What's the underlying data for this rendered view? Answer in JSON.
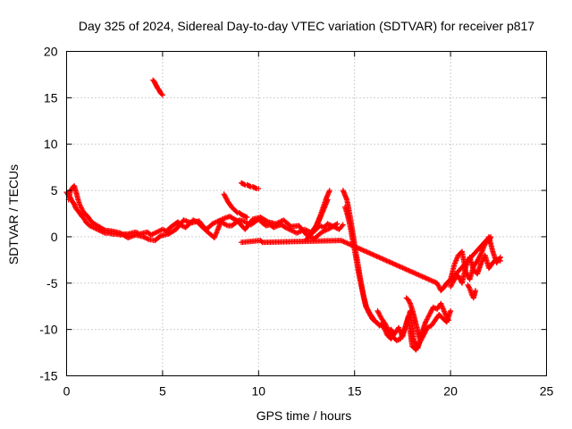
{
  "chart_data": {
    "type": "scatter",
    "title": "Day 325 of 2024, Sidereal Day-to-day VTEC variation (SDTVAR) for receiver p817",
    "xlabel": "GPS time / hours",
    "ylabel": "SDTVAR / TECUs",
    "xlim": [
      0,
      25
    ],
    "ylim": [
      -15,
      20
    ],
    "xticks": [
      0,
      5,
      10,
      15,
      20,
      25
    ],
    "yticks": [
      -15,
      -10,
      -5,
      0,
      5,
      10,
      15,
      20
    ],
    "grid": true,
    "marker": "+",
    "color": "#ff0000",
    "series": [
      {
        "name": "main",
        "x": [
          0.0,
          0.1,
          0.2,
          0.3,
          0.4,
          0.5,
          0.6,
          0.7,
          0.8,
          0.9,
          1.0,
          1.2,
          1.4,
          1.6,
          1.8,
          2.0,
          2.2,
          2.4,
          2.6,
          2.8,
          3.0,
          3.2,
          3.4,
          3.6,
          3.8,
          4.0,
          4.2,
          4.4,
          4.6,
          4.8,
          5.0,
          5.2,
          5.4,
          5.6,
          5.8,
          6.0,
          6.2,
          6.4,
          6.6,
          6.8,
          7.0,
          7.2,
          7.4,
          7.6,
          7.8,
          8.0,
          8.2,
          8.4,
          8.6,
          8.8,
          9.0,
          9.2,
          9.4,
          9.6,
          9.8,
          10.0,
          10.2,
          10.4,
          10.6,
          10.8,
          11.0,
          11.2,
          11.4,
          11.6,
          11.8,
          12.0,
          12.2,
          12.4,
          12.6,
          12.8,
          13.0,
          13.2,
          13.4,
          13.6,
          13.8,
          14.0,
          14.2,
          14.4
        ],
        "y": [
          4.8,
          4.5,
          4.2,
          3.8,
          3.5,
          3.0,
          2.8,
          2.5,
          2.2,
          2.0,
          1.6,
          1.2,
          1.0,
          0.8,
          0.6,
          0.4,
          0.4,
          0.3,
          0.3,
          0.2,
          0.3,
          0.3,
          0.4,
          0.5,
          0.3,
          0.4,
          0.5,
          0.2,
          0.4,
          0.6,
          0.8,
          0.6,
          1.0,
          1.3,
          1.6,
          1.2,
          1.0,
          1.4,
          1.8,
          1.6,
          1.2,
          0.8,
          1.0,
          1.4,
          1.6,
          1.8,
          1.4,
          1.2,
          1.2,
          1.5,
          1.8,
          1.7,
          1.5,
          1.3,
          1.6,
          1.9,
          1.5,
          1.2,
          1.3,
          1.0,
          1.2,
          1.3,
          1.0,
          0.8,
          0.6,
          0.4,
          0.6,
          0.8,
          0.6,
          0.4,
          0.8,
          1.2,
          1.0,
          1.4,
          1.2,
          1.0,
          0.8,
          1.3
        ]
      },
      {
        "name": "main-b",
        "x": [
          0.1,
          0.2,
          0.3,
          0.4,
          0.5,
          0.6,
          0.7,
          0.9,
          1.1,
          1.3,
          1.6,
          2.0,
          2.4,
          2.8,
          3.2,
          3.6,
          4.0,
          4.3,
          4.6,
          4.9,
          5.3,
          5.7,
          6.1,
          6.5,
          6.9,
          7.3,
          7.7,
          8.1,
          8.5,
          8.9,
          9.3,
          9.7,
          10.1,
          10.5,
          10.9,
          11.3,
          11.7,
          12.1,
          12.5,
          12.9,
          13.3,
          13.7,
          14.1
        ],
        "y": [
          4.0,
          4.9,
          5.3,
          5.5,
          4.8,
          4.0,
          3.4,
          2.6,
          2.2,
          1.6,
          1.2,
          0.7,
          0.6,
          0.4,
          -0.1,
          0.2,
          0.0,
          -0.3,
          -0.4,
          0.1,
          0.3,
          0.8,
          1.8,
          1.5,
          1.7,
          0.6,
          -0.1,
          1.9,
          2.2,
          1.7,
          0.8,
          1.9,
          2.1,
          1.6,
          1.4,
          1.8,
          1.1,
          1.2,
          0.2,
          -0.2,
          0.5,
          0.9,
          1.4
        ]
      },
      {
        "name": "steep-rise-1",
        "x": [
          12.5,
          12.6,
          12.7,
          12.8,
          12.9,
          13.0,
          13.1,
          13.2,
          13.3,
          13.4,
          13.5,
          13.6,
          13.7
        ],
        "y": [
          -0.3,
          0.0,
          0.2,
          0.6,
          0.9,
          1.2,
          1.7,
          2.2,
          2.8,
          3.4,
          4.0,
          4.5,
          5.0
        ]
      },
      {
        "name": "steep-rise-2",
        "x": [
          13.0,
          13.1,
          13.2,
          13.3,
          13.4,
          13.5,
          13.6
        ],
        "y": [
          1.1,
          1.5,
          2.0,
          2.5,
          3.0,
          3.5,
          4.0
        ]
      },
      {
        "name": "outlier-high",
        "x": [
          4.5,
          4.55,
          4.6,
          4.65,
          4.7,
          4.75,
          4.8,
          4.85,
          4.9,
          4.95,
          5.0
        ],
        "y": [
          16.9,
          16.8,
          16.6,
          16.4,
          16.2,
          16.0,
          15.9,
          15.7,
          15.5,
          15.4,
          15.3
        ]
      },
      {
        "name": "outlier-mid-a",
        "x": [
          9.1,
          9.2,
          9.3,
          9.4,
          9.5,
          9.6,
          9.7,
          9.8,
          9.9,
          10.0
        ],
        "y": [
          5.8,
          5.7,
          5.6,
          5.6,
          5.5,
          5.4,
          5.4,
          5.3,
          5.2,
          5.2
        ]
      },
      {
        "name": "outlier-mid-b",
        "x": [
          8.2,
          8.3,
          8.4,
          8.5,
          8.6,
          8.7,
          8.8,
          8.9,
          9.0,
          9.1,
          9.2,
          9.3,
          9.4
        ],
        "y": [
          4.6,
          4.2,
          3.8,
          3.5,
          3.2,
          3.0,
          2.8,
          2.6,
          2.6,
          2.4,
          2.3,
          2.2,
          2.1
        ]
      },
      {
        "name": "descent",
        "x": [
          14.4,
          14.5,
          14.6,
          14.7,
          14.8,
          14.9,
          15.0,
          15.1,
          15.2,
          15.3,
          15.4,
          15.5,
          15.6,
          15.7,
          15.8,
          15.9,
          16.0,
          16.1,
          16.2,
          16.3,
          16.4,
          16.5,
          16.6,
          16.7,
          16.8,
          16.9,
          17.0
        ],
        "y": [
          5.0,
          4.5,
          4.0,
          3.0,
          1.8,
          0.5,
          -0.8,
          -2.0,
          -3.2,
          -4.5,
          -5.6,
          -6.6,
          -7.4,
          -8.0,
          -8.4,
          -8.8,
          -9.0,
          -9.2,
          -9.3,
          -9.6,
          -9.4,
          -9.8,
          -10.0,
          -10.1,
          -10.2,
          -10.0,
          -10.3
        ]
      },
      {
        "name": "descent-b",
        "x": [
          14.5,
          14.6,
          14.7,
          14.8,
          14.9,
          15.0,
          15.1,
          15.2,
          15.3,
          15.4,
          15.5,
          15.6,
          15.7,
          15.8,
          15.9,
          16.0
        ],
        "y": [
          3.2,
          2.6,
          1.8,
          0.8,
          -0.4,
          -1.4,
          -2.6,
          -3.8,
          -4.8,
          -5.8,
          -6.8,
          -7.6,
          -7.9,
          -8.3,
          -8.6,
          -8.9
        ]
      },
      {
        "name": "trough",
        "x": [
          16.2,
          16.4,
          16.6,
          16.8,
          17.0,
          17.2,
          17.4,
          17.6,
          17.8,
          18.0,
          18.2,
          18.4,
          18.6,
          18.8,
          19.0,
          19.2,
          19.4,
          19.6,
          19.8,
          20.0
        ],
        "y": [
          -8.0,
          -8.8,
          -9.4,
          -10.2,
          -10.8,
          -11.2,
          -11.0,
          -10.0,
          -8.6,
          -11.8,
          -12.2,
          -11.4,
          -10.6,
          -9.8,
          -9.6,
          -9.0,
          -8.4,
          -8.8,
          -9.2,
          -8.0
        ]
      },
      {
        "name": "trough-b",
        "x": [
          16.5,
          16.7,
          16.9,
          17.1,
          17.3,
          17.5,
          17.7,
          17.9,
          18.1,
          18.3,
          18.5,
          18.7,
          18.9,
          19.1,
          19.3,
          19.5,
          19.7,
          19.9
        ],
        "y": [
          -9.6,
          -10.6,
          -11.0,
          -10.4,
          -9.8,
          -10.8,
          -9.4,
          -8.0,
          -11.2,
          -12.0,
          -10.4,
          -9.2,
          -8.4,
          -7.6,
          -7.8,
          -7.2,
          -8.2,
          -9.0
        ]
      },
      {
        "name": "trough-spike",
        "x": [
          17.7,
          17.8,
          17.9,
          18.0,
          18.1,
          18.2,
          18.3,
          18.4
        ],
        "y": [
          -6.6,
          -6.8,
          -7.2,
          -7.8,
          -8.6,
          -9.4,
          -10.2,
          -11.0
        ]
      },
      {
        "name": "recovery",
        "x": [
          19.6,
          19.8,
          20.0,
          20.2,
          20.4,
          20.6,
          20.8,
          21.0,
          21.2,
          21.4,
          21.6,
          21.8,
          22.0,
          22.2,
          22.4,
          22.6
        ],
        "y": [
          -5.6,
          -5.0,
          -4.6,
          -3.0,
          -2.0,
          -1.6,
          -3.8,
          -4.6,
          -3.2,
          -2.6,
          -1.8,
          -0.8,
          0.0,
          -1.6,
          -2.8,
          -2.2
        ]
      },
      {
        "name": "recovery-b",
        "x": [
          20.0,
          20.2,
          20.4,
          20.6,
          20.8,
          21.0,
          21.2,
          21.4,
          21.6,
          21.8,
          22.0,
          22.2,
          22.4,
          22.6
        ],
        "y": [
          -5.4,
          -4.6,
          -4.2,
          -5.0,
          -3.2,
          -2.2,
          -3.6,
          -4.0,
          -2.8,
          -2.0,
          -3.4,
          -2.8,
          -2.4,
          -2.6
        ]
      },
      {
        "name": "recovery-c",
        "x": [
          20.9,
          21.0,
          21.1,
          21.2,
          21.3
        ],
        "y": [
          -5.2,
          -5.6,
          -6.2,
          -6.6,
          -5.8
        ]
      },
      {
        "name": "stray",
        "x": [
          9.1,
          10.1,
          10.2,
          14.3,
          19.3,
          19.5,
          21.9,
          22.0,
          22.1
        ],
        "y": [
          -0.6,
          -0.4,
          -0.6,
          -0.4,
          -5.0,
          -5.8,
          -0.3,
          -0.5,
          0.0
        ]
      }
    ]
  }
}
